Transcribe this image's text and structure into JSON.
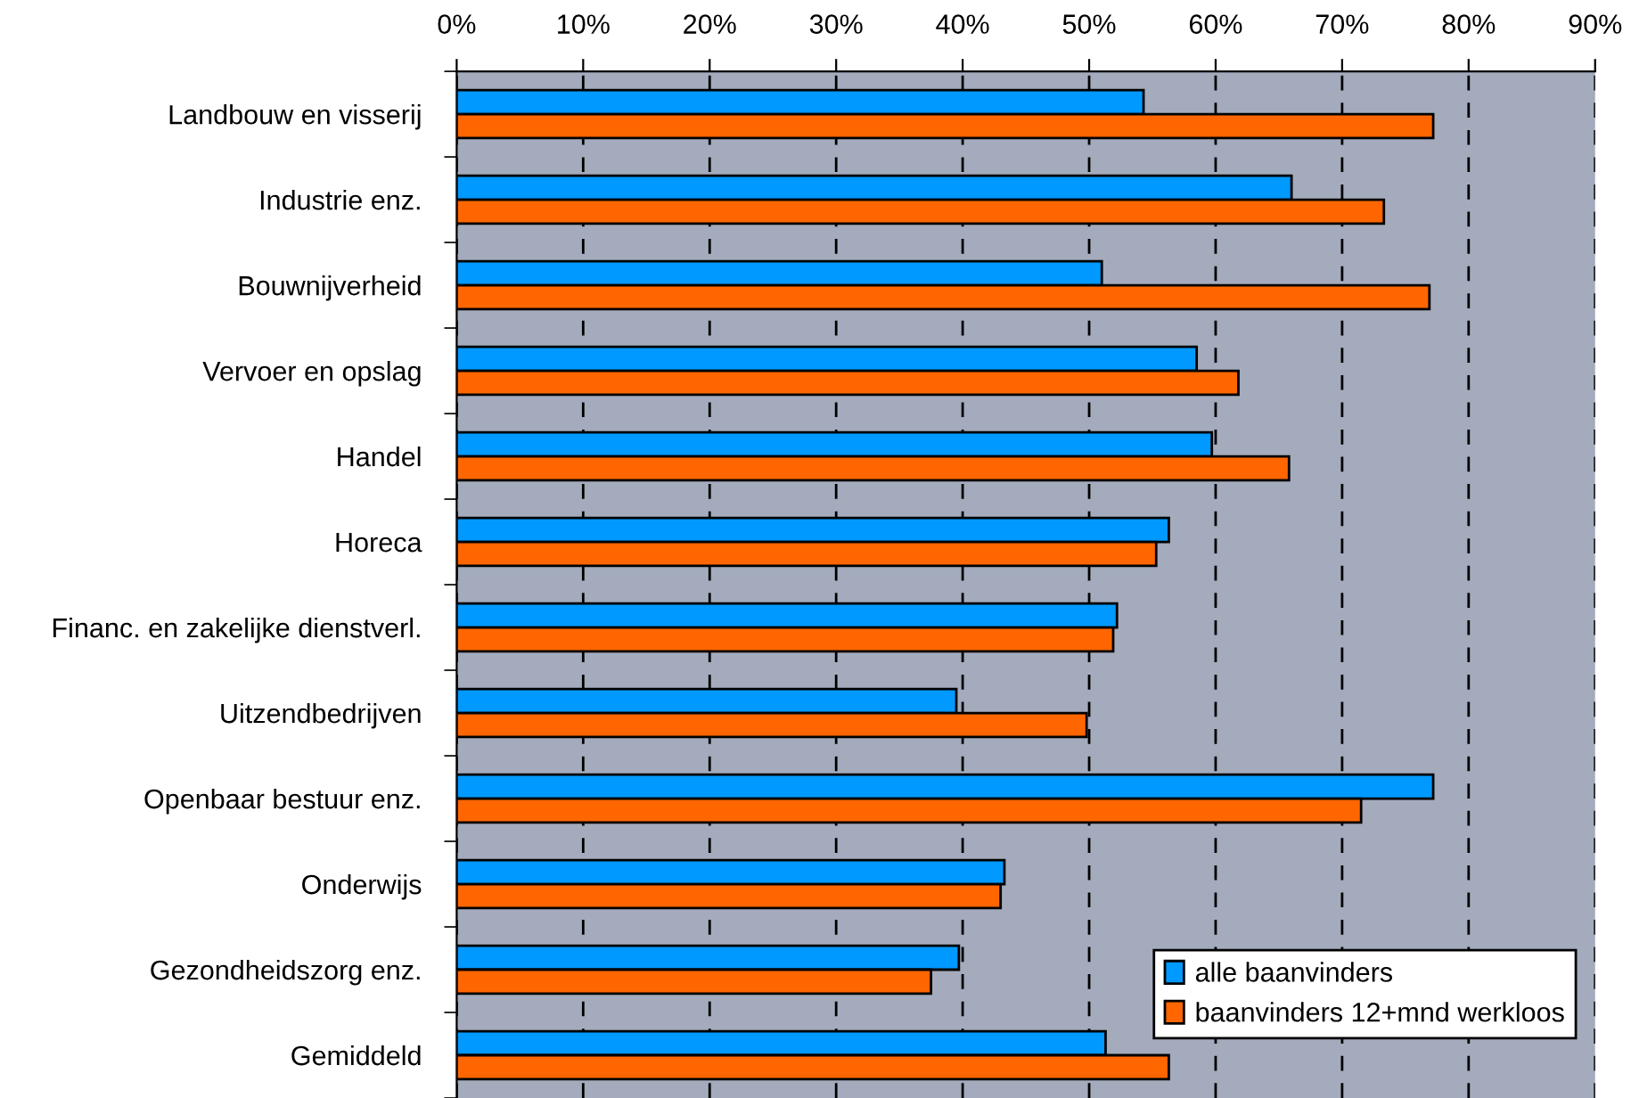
{
  "chart_data": {
    "type": "bar",
    "orientation": "horizontal",
    "categories": [
      "Landbouw en visserij",
      "Industrie enz.",
      "Bouwnijverheid",
      "Vervoer en opslag",
      "Handel",
      "Horeca",
      "Financ. en zakelijke dienstverl.",
      "Uitzendbedrijven",
      "Openbaar bestuur enz.",
      "Onderwijs",
      "Gezondheidszorg enz.",
      "Gemiddeld"
    ],
    "series": [
      {
        "name": "alle baanvinders",
        "color": "#0099ff",
        "values": [
          54.3,
          66.0,
          51.0,
          58.5,
          59.7,
          56.3,
          52.2,
          39.5,
          77.2,
          43.3,
          39.7,
          51.3
        ]
      },
      {
        "name": "baanvinders 12+mnd werkloos",
        "color": "#ff6600",
        "values": [
          77.2,
          73.3,
          76.9,
          61.8,
          65.8,
          55.3,
          51.9,
          49.8,
          71.5,
          43.0,
          37.5,
          56.3
        ]
      }
    ],
    "xlim": [
      0,
      90
    ],
    "xticks": [
      {
        "value": 0,
        "label": "0%"
      },
      {
        "value": 10,
        "label": "10%"
      },
      {
        "value": 20,
        "label": "20%"
      },
      {
        "value": 30,
        "label": "30%"
      },
      {
        "value": 40,
        "label": "40%"
      },
      {
        "value": 50,
        "label": "50%"
      },
      {
        "value": 60,
        "label": "60%"
      },
      {
        "value": 70,
        "label": "70%"
      },
      {
        "value": 80,
        "label": "80%"
      },
      {
        "value": 90,
        "label": "90%"
      }
    ],
    "grid": "x",
    "line_style": "dashed",
    "legend": "bottom right"
  }
}
